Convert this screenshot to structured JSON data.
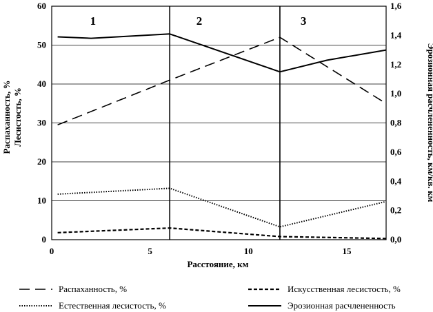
{
  "chart_data": {
    "type": "line",
    "xlabel": "Расстояние, км",
    "ylabel_left_line1": "Распаханность, %",
    "ylabel_left_line2": "Лесистость, %",
    "ylabel_right": "Эрозионная расчлененность, км/кв. км",
    "xlim": [
      0,
      17
    ],
    "ylim_left": [
      0,
      60
    ],
    "ylim_right": [
      0,
      1.6
    ],
    "x_ticks": [
      "0",
      "5",
      "10",
      "15"
    ],
    "y_ticks_left": [
      "0",
      "10",
      "20",
      "30",
      "40",
      "50",
      "60"
    ],
    "y_ticks_right": [
      "0,0",
      "0,2",
      "0,4",
      "0,6",
      "0,8",
      "1,0",
      "1,2",
      "1,4",
      "1,6"
    ],
    "grid": "horizontal",
    "zone_boundaries": [
      6.0,
      11.6
    ],
    "zones": [
      {
        "label": "1",
        "x": 2.1
      },
      {
        "label": "2",
        "x": 7.5
      },
      {
        "label": "3",
        "x": 12.8
      }
    ],
    "series": [
      {
        "name": "Распаханность, %",
        "axis": "left",
        "style": "longdash",
        "x": [
          0.3,
          6.0,
          11.6,
          17.0
        ],
        "y": [
          29.5,
          41.0,
          52.0,
          35.0
        ]
      },
      {
        "name": "Искусственная лесистость, %",
        "axis": "left",
        "style": "shortdash",
        "x": [
          0.3,
          6.0,
          11.6,
          17.0
        ],
        "y": [
          1.8,
          3.0,
          0.8,
          0.3
        ]
      },
      {
        "name": "Естественная лесистость, %",
        "axis": "left",
        "style": "dotted",
        "x": [
          0.3,
          6.0,
          11.6,
          17.0
        ],
        "y": [
          11.7,
          13.2,
          3.3,
          9.8
        ]
      },
      {
        "name": "Эрозионная расчлененность",
        "axis": "right",
        "style": "solid",
        "x": [
          0.3,
          2.0,
          6.0,
          11.6,
          14.0,
          17.0
        ],
        "y": [
          1.39,
          1.38,
          1.41,
          1.15,
          1.23,
          1.3
        ]
      }
    ],
    "legend": "bottom"
  }
}
